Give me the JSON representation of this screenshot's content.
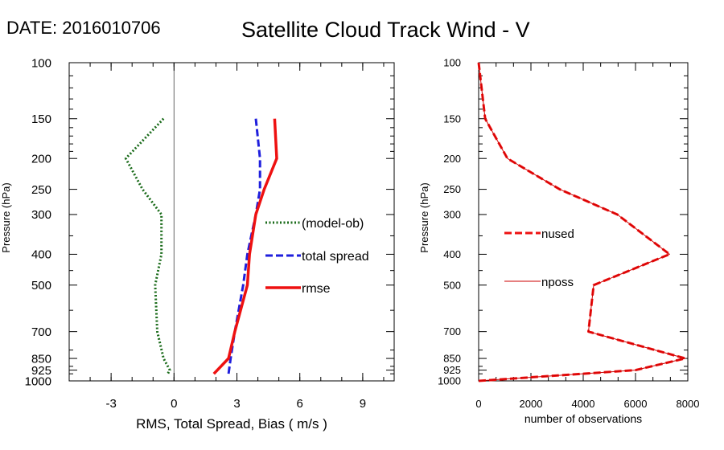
{
  "header": {
    "date": "DATE: 2016010706",
    "title": "Satellite Cloud Track Wind - V"
  },
  "chart_data": [
    {
      "type": "line",
      "xlabel": "RMS, Total Spread, Bias ( m/s )",
      "ylabel": "Pressure (hPa)",
      "xlim": [
        -5,
        10.5
      ],
      "ylim": [
        1000,
        100
      ],
      "y_scale": "log",
      "x_ticks": [
        -3,
        0,
        3,
        6,
        9
      ],
      "y_ticks": [
        100,
        150,
        200,
        250,
        300,
        400,
        500,
        700,
        850,
        925,
        1000
      ],
      "zero_line": true,
      "grid": false,
      "legend_placement": "center-right",
      "series": [
        {
          "name": "(model-ob)",
          "color": "#1a6b1a",
          "style": "dotted",
          "x": [
            -0.5,
            -2.3,
            -1.5,
            -0.6,
            -0.6,
            -0.9,
            -0.8,
            -0.5,
            -0.2,
            -0.3
          ],
          "y": [
            150,
            200,
            250,
            300,
            400,
            500,
            700,
            850,
            925,
            950
          ]
        },
        {
          "name": "total spread",
          "color": "#1f1fdd",
          "style": "dashed",
          "x": [
            3.9,
            4.1,
            4.1,
            3.9,
            3.5,
            3.3,
            2.9,
            2.7,
            2.6
          ],
          "y": [
            150,
            200,
            250,
            300,
            400,
            500,
            700,
            850,
            950
          ]
        },
        {
          "name": "rmse",
          "color": "#ee1111",
          "style": "solid",
          "x": [
            4.8,
            4.9,
            4.3,
            3.9,
            3.6,
            3.5,
            2.9,
            2.6,
            1.9
          ],
          "y": [
            150,
            200,
            250,
            300,
            400,
            500,
            700,
            850,
            950
          ]
        }
      ]
    },
    {
      "type": "line",
      "xlabel": "number of observations",
      "ylabel": "Pressure (hPa)",
      "xlim": [
        0,
        8000
      ],
      "ylim": [
        1000,
        100
      ],
      "y_scale": "log",
      "x_ticks": [
        0,
        2000,
        4000,
        6000,
        8000
      ],
      "y_ticks": [
        100,
        150,
        200,
        250,
        300,
        400,
        500,
        700,
        850,
        925,
        1000
      ],
      "grid": false,
      "legend_placement": "center-left",
      "series": [
        {
          "name": "nused",
          "color": "#ee1111",
          "style": "dashed",
          "x": [
            0,
            250,
            1100,
            3100,
            5300,
            7300,
            4400,
            4200,
            7900,
            6000,
            0
          ],
          "y": [
            100,
            150,
            200,
            250,
            300,
            400,
            500,
            700,
            850,
            925,
            1000
          ]
        },
        {
          "name": "nposs",
          "color": "#cc0000",
          "style": "thin",
          "x": [
            0,
            250,
            1100,
            3100,
            5300,
            7300,
            4400,
            4200,
            7900,
            6000,
            0
          ],
          "y": [
            100,
            150,
            200,
            250,
            300,
            400,
            500,
            700,
            850,
            925,
            1000
          ]
        }
      ]
    }
  ]
}
